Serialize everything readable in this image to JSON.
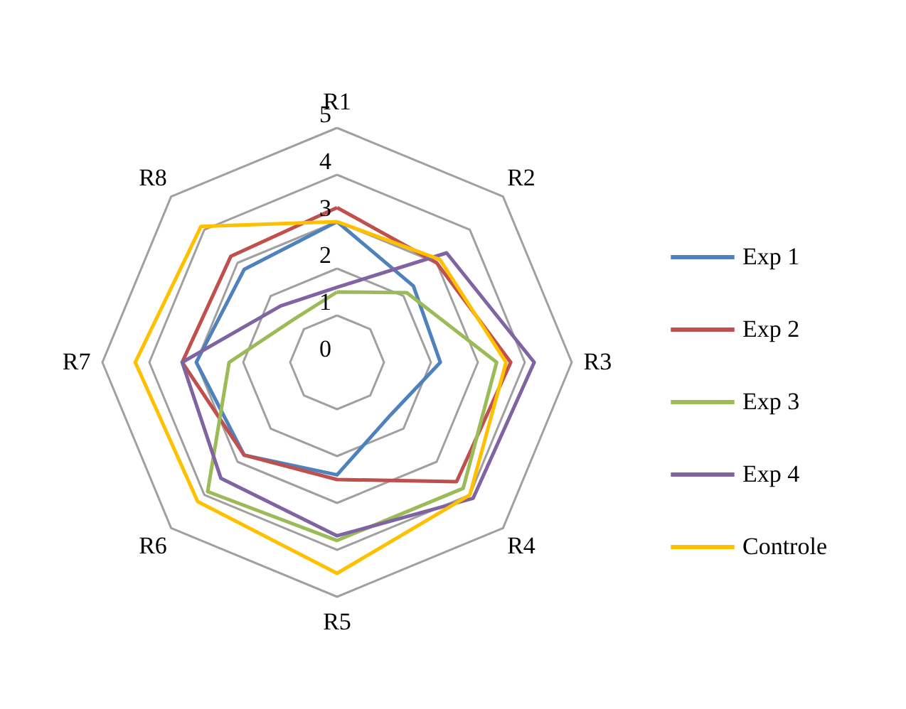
{
  "chart_data": {
    "type": "radar",
    "categories": [
      "R1",
      "R2",
      "R3",
      "R4",
      "R5",
      "R6",
      "R7",
      "R8"
    ],
    "series": [
      {
        "name": "Exp 1",
        "color": "#4f81bd",
        "values": [
          3.0,
          2.3,
          2.2,
          1.6,
          2.4,
          2.8,
          3.0,
          2.8
        ]
      },
      {
        "name": "Exp 2",
        "color": "#c0504d",
        "values": [
          3.3,
          3.0,
          3.7,
          3.6,
          2.5,
          2.8,
          3.3,
          3.2
        ]
      },
      {
        "name": "Exp 3",
        "color": "#9bbb59",
        "values": [
          1.5,
          2.1,
          3.4,
          3.8,
          3.8,
          3.9,
          2.3,
          1.3
        ]
      },
      {
        "name": "Exp 4",
        "color": "#8064a2",
        "values": [
          1.6,
          3.3,
          4.2,
          4.1,
          3.7,
          3.5,
          3.3,
          1.7
        ]
      },
      {
        "name": "Controle",
        "color": "#ffc000",
        "values": [
          3.0,
          3.1,
          3.6,
          4.0,
          4.5,
          4.2,
          4.3,
          4.1
        ]
      }
    ],
    "ylim": [
      0,
      5
    ],
    "yticks": [
      0,
      1,
      2,
      3,
      4,
      5
    ],
    "grid": true,
    "legend": "right"
  }
}
